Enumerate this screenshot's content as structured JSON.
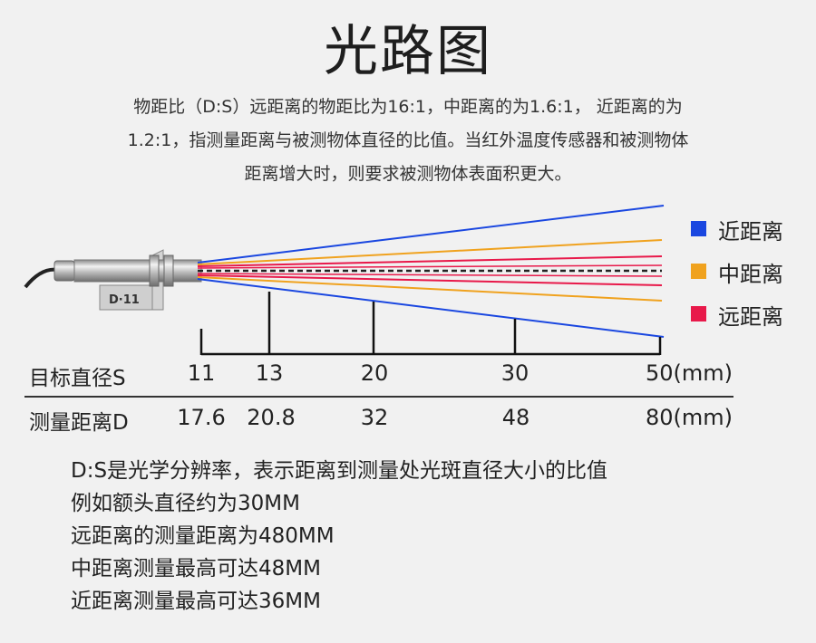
{
  "title": "光路图",
  "intro": {
    "line1": "物距比（D:S）远距离的物距比为16:1，中距离的为1.6:1， 近距离的为",
    "line2": "1.2:1，指测量距离与被测物体直径的比值。当红外温度传感器和被测物体",
    "line3": "距离增大时，则要求被测物体表面积更大。"
  },
  "sensor": {
    "tag": "D·11"
  },
  "legend": [
    {
      "label": "近距离",
      "color": "#1a47e0"
    },
    {
      "label": "中距离",
      "color": "#f0a21e"
    },
    {
      "label": "远距离",
      "color": "#e8194a"
    }
  ],
  "table": {
    "row1_label": "目标直径S",
    "row2_label": "测量距离D",
    "s_values": [
      "11",
      "13",
      "20",
      "30",
      "50(mm)"
    ],
    "d_values": [
      "17.6",
      "20.8",
      "32",
      "48",
      "80(mm)"
    ]
  },
  "notes": [
    "D:S是光学分辨率，表示距离到测量处光斑直径大小的比值",
    "例如额头直径约为30MM",
    "远距离的测量距离为480MM",
    "中距离测量最高可达48MM",
    "近距离测量最高可达36MM"
  ]
}
